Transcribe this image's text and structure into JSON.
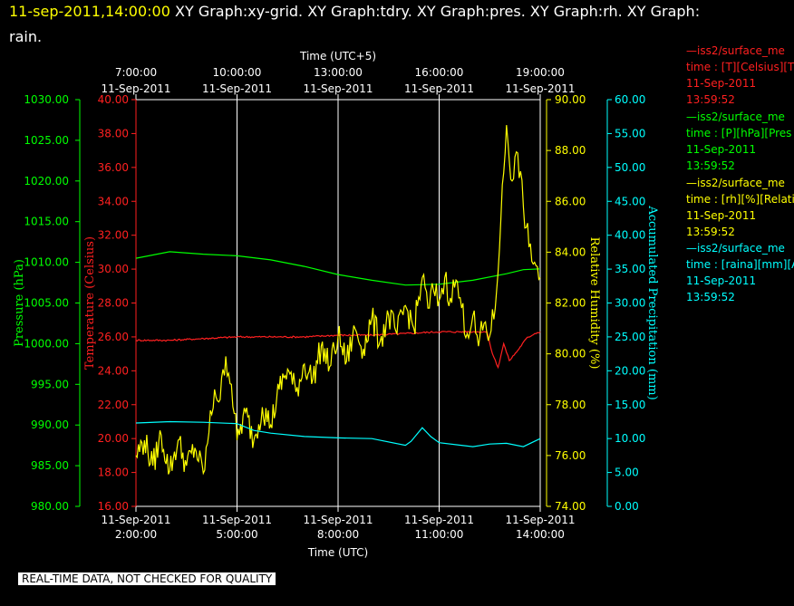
{
  "header": {
    "timestamp": "11-sep-2011,14:00:00",
    "title_rest": " XY Graph:xy-grid.  XY Graph:tdry.  XY Graph:pres.  XY Graph:rh.  XY Graph:",
    "title_wrap": "rain."
  },
  "footer": {
    "notice": "REAL-TIME DATA, NOT CHECKED FOR QUALITY"
  },
  "legend": [
    {
      "series": "—iss2/surface_me",
      "variable": "time : [T][Celsius][T",
      "date": "11-Sep-2011",
      "time": "13:59:52",
      "color": "#ff2020"
    },
    {
      "series": "—iss2/surface_me",
      "variable": "time : [P][hPa][Pres",
      "date": "11-Sep-2011",
      "time": "13:59:52",
      "color": "#00ff00"
    },
    {
      "series": "—iss2/surface_me",
      "variable": "time : [rh][%][Relati",
      "date": "11-Sep-2011",
      "time": "13:59:52",
      "color": "#ffff00"
    },
    {
      "series": "—iss2/surface_me",
      "variable": "time : [raina][mm][A",
      "date": "11-Sep-2011",
      "time": "13:59:52",
      "color": "#00ffff"
    }
  ],
  "chart_data": {
    "type": "line",
    "x_bottom": {
      "label": "Time (UTC)",
      "range": [
        "2011-09-11 02:00",
        "2011-09-11 14:00"
      ],
      "ticks": [
        {
          "t": "2011-09-11 02:00",
          "date": "11-Sep-2011",
          "time": "2:00:00"
        },
        {
          "t": "2011-09-11 05:00",
          "date": "11-Sep-2011",
          "time": "5:00:00"
        },
        {
          "t": "2011-09-11 08:00",
          "date": "11-Sep-2011",
          "time": "8:00:00"
        },
        {
          "t": "2011-09-11 11:00",
          "date": "11-Sep-2011",
          "time": "11:00:00"
        },
        {
          "t": "2011-09-11 14:00",
          "date": "11-Sep-2011",
          "time": "14:00:00"
        }
      ]
    },
    "x_top": {
      "label": "Time (UTC+5)",
      "ticks": [
        {
          "t": "2011-09-11 07:00",
          "date": "11-Sep-2011",
          "time": "7:00:00"
        },
        {
          "t": "2011-09-11 10:00",
          "date": "11-Sep-2011",
          "time": "10:00:00"
        },
        {
          "t": "2011-09-11 13:00",
          "date": "11-Sep-2011",
          "time": "13:00:00"
        },
        {
          "t": "2011-09-11 16:00",
          "date": "11-Sep-2011",
          "time": "16:00:00"
        },
        {
          "t": "2011-09-11 19:00",
          "date": "11-Sep-2011",
          "time": "19:00:00"
        }
      ]
    },
    "grid": "vertical",
    "axes": [
      {
        "id": "pres",
        "label": "Pressure (hPa)",
        "color": "#00ff00",
        "min": 980,
        "max": 1030,
        "step": 5,
        "decimals": 2
      },
      {
        "id": "temp",
        "label": "Temperature (Celsius)",
        "color": "#ff2020",
        "min": 16,
        "max": 40,
        "step": 2,
        "decimals": 2,
        "tick_start": 16,
        "tick_end": 40
      },
      {
        "id": "rh",
        "label": "Relative Humidity (%)",
        "color": "#ffff00",
        "min": 74,
        "max": 90,
        "step": 2,
        "decimals": 2
      },
      {
        "id": "rain",
        "label": "Accumulated Precipitation (mm)",
        "color": "#00ffff",
        "min": 0,
        "max": 60,
        "step": 5,
        "decimals": 2
      }
    ],
    "series": [
      {
        "name": "Pressure",
        "axis": "pres",
        "color": "#00ff00",
        "points": [
          [
            "2011-09-11 02:00",
            1010.5
          ],
          [
            "2011-09-11 03:00",
            1011.3
          ],
          [
            "2011-09-11 04:00",
            1011.0
          ],
          [
            "2011-09-11 05:00",
            1010.8
          ],
          [
            "2011-09-11 06:00",
            1010.3
          ],
          [
            "2011-09-11 07:00",
            1009.5
          ],
          [
            "2011-09-11 08:00",
            1008.5
          ],
          [
            "2011-09-11 09:00",
            1007.8
          ],
          [
            "2011-09-11 10:00",
            1007.2
          ],
          [
            "2011-09-11 11:00",
            1007.3
          ],
          [
            "2011-09-11 12:00",
            1007.8
          ],
          [
            "2011-09-11 13:00",
            1008.6
          ],
          [
            "2011-09-11 13:30",
            1009.1
          ],
          [
            "2011-09-11 14:00",
            1009.2
          ]
        ]
      },
      {
        "name": "Temperature",
        "axis": "temp",
        "color": "#ff2020",
        "points": [
          [
            "2011-09-11 02:00",
            25.8
          ],
          [
            "2011-09-11 03:00",
            25.8
          ],
          [
            "2011-09-11 04:00",
            25.9
          ],
          [
            "2011-09-11 05:00",
            26.0
          ],
          [
            "2011-09-11 06:00",
            26.0
          ],
          [
            "2011-09-11 07:00",
            26.0
          ],
          [
            "2011-09-11 08:00",
            26.1
          ],
          [
            "2011-09-11 09:00",
            26.1
          ],
          [
            "2011-09-11 10:00",
            26.2
          ],
          [
            "2011-09-11 11:00",
            26.3
          ],
          [
            "2011-09-11 12:00",
            26.3
          ],
          [
            "2011-09-11 12:25",
            26.3
          ],
          [
            "2011-09-11 12:35",
            25.0
          ],
          [
            "2011-09-11 12:45",
            24.2
          ],
          [
            "2011-09-11 12:55",
            25.6
          ],
          [
            "2011-09-11 13:05",
            24.6
          ],
          [
            "2011-09-11 13:20",
            25.2
          ],
          [
            "2011-09-11 13:35",
            25.9
          ],
          [
            "2011-09-11 13:50",
            26.2
          ],
          [
            "2011-09-11 14:00",
            26.3
          ]
        ]
      },
      {
        "name": "Relative Humidity",
        "axis": "rh",
        "color": "#ffff00",
        "points": [
          [
            "2011-09-11 02:00",
            76.0
          ],
          [
            "2011-09-11 02:15",
            76.6
          ],
          [
            "2011-09-11 02:30",
            75.6
          ],
          [
            "2011-09-11 02:45",
            76.8
          ],
          [
            "2011-09-11 03:00",
            75.4
          ],
          [
            "2011-09-11 03:15",
            76.6
          ],
          [
            "2011-09-11 03:30",
            75.6
          ],
          [
            "2011-09-11 03:45",
            76.3
          ],
          [
            "2011-09-11 04:00",
            75.3
          ],
          [
            "2011-09-11 04:10",
            76.9
          ],
          [
            "2011-09-11 04:20",
            78.6
          ],
          [
            "2011-09-11 04:30",
            78.2
          ],
          [
            "2011-09-11 04:40",
            79.9
          ],
          [
            "2011-09-11 04:50",
            78.8
          ],
          [
            "2011-09-11 05:00",
            76.6
          ],
          [
            "2011-09-11 05:15",
            77.7
          ],
          [
            "2011-09-11 05:30",
            76.6
          ],
          [
            "2011-09-11 05:45",
            77.9
          ],
          [
            "2011-09-11 06:00",
            77.2
          ],
          [
            "2011-09-11 06:15",
            78.6
          ],
          [
            "2011-09-11 06:30",
            79.4
          ],
          [
            "2011-09-11 06:45",
            78.5
          ],
          [
            "2011-09-11 07:00",
            79.6
          ],
          [
            "2011-09-11 07:15",
            79.0
          ],
          [
            "2011-09-11 07:30",
            80.3
          ],
          [
            "2011-09-11 07:45",
            79.5
          ],
          [
            "2011-09-11 08:00",
            80.7
          ],
          [
            "2011-09-11 08:15",
            79.7
          ],
          [
            "2011-09-11 08:30",
            81.0
          ],
          [
            "2011-09-11 08:45",
            80.2
          ],
          [
            "2011-09-11 09:00",
            81.4
          ],
          [
            "2011-09-11 09:15",
            80.5
          ],
          [
            "2011-09-11 09:30",
            81.5
          ],
          [
            "2011-09-11 09:45",
            80.8
          ],
          [
            "2011-09-11 10:00",
            81.9
          ],
          [
            "2011-09-11 10:15",
            81.0
          ],
          [
            "2011-09-11 10:30",
            83.0
          ],
          [
            "2011-09-11 10:40",
            81.8
          ],
          [
            "2011-09-11 10:50",
            82.5
          ],
          [
            "2011-09-11 11:00",
            82.1
          ],
          [
            "2011-09-11 11:10",
            83.0
          ],
          [
            "2011-09-11 11:20",
            82.2
          ],
          [
            "2011-09-11 11:30",
            82.9
          ],
          [
            "2011-09-11 11:40",
            81.8
          ],
          [
            "2011-09-11 11:50",
            80.8
          ],
          [
            "2011-09-11 12:00",
            81.5
          ],
          [
            "2011-09-11 12:10",
            80.3
          ],
          [
            "2011-09-11 12:20",
            81.2
          ],
          [
            "2011-09-11 12:30",
            80.7
          ],
          [
            "2011-09-11 12:40",
            81.8
          ],
          [
            "2011-09-11 12:50",
            85.3
          ],
          [
            "2011-09-11 13:00",
            89.0
          ],
          [
            "2011-09-11 13:10",
            86.8
          ],
          [
            "2011-09-11 13:20",
            87.9
          ],
          [
            "2011-09-11 13:30",
            85.8
          ],
          [
            "2011-09-11 13:40",
            84.2
          ],
          [
            "2011-09-11 13:50",
            83.6
          ],
          [
            "2011-09-11 14:00",
            83.0
          ]
        ]
      },
      {
        "name": "Accumulated Precipitation",
        "axis": "rain",
        "color": "#00ffff",
        "points": [
          [
            "2011-09-11 02:00",
            12.3
          ],
          [
            "2011-09-11 03:00",
            12.5
          ],
          [
            "2011-09-11 04:00",
            12.4
          ],
          [
            "2011-09-11 05:00",
            12.2
          ],
          [
            "2011-09-11 05:30",
            11.2
          ],
          [
            "2011-09-11 06:00",
            10.8
          ],
          [
            "2011-09-11 07:00",
            10.3
          ],
          [
            "2011-09-11 08:00",
            10.1
          ],
          [
            "2011-09-11 09:00",
            10.0
          ],
          [
            "2011-09-11 10:00",
            9.0
          ],
          [
            "2011-09-11 10:10",
            9.6
          ],
          [
            "2011-09-11 10:30",
            11.6
          ],
          [
            "2011-09-11 10:45",
            10.3
          ],
          [
            "2011-09-11 11:00",
            9.4
          ],
          [
            "2011-09-11 12:00",
            8.8
          ],
          [
            "2011-09-11 12:30",
            9.2
          ],
          [
            "2011-09-11 13:00",
            9.3
          ],
          [
            "2011-09-11 13:30",
            8.8
          ],
          [
            "2011-09-11 14:00",
            10.0
          ]
        ]
      }
    ]
  }
}
